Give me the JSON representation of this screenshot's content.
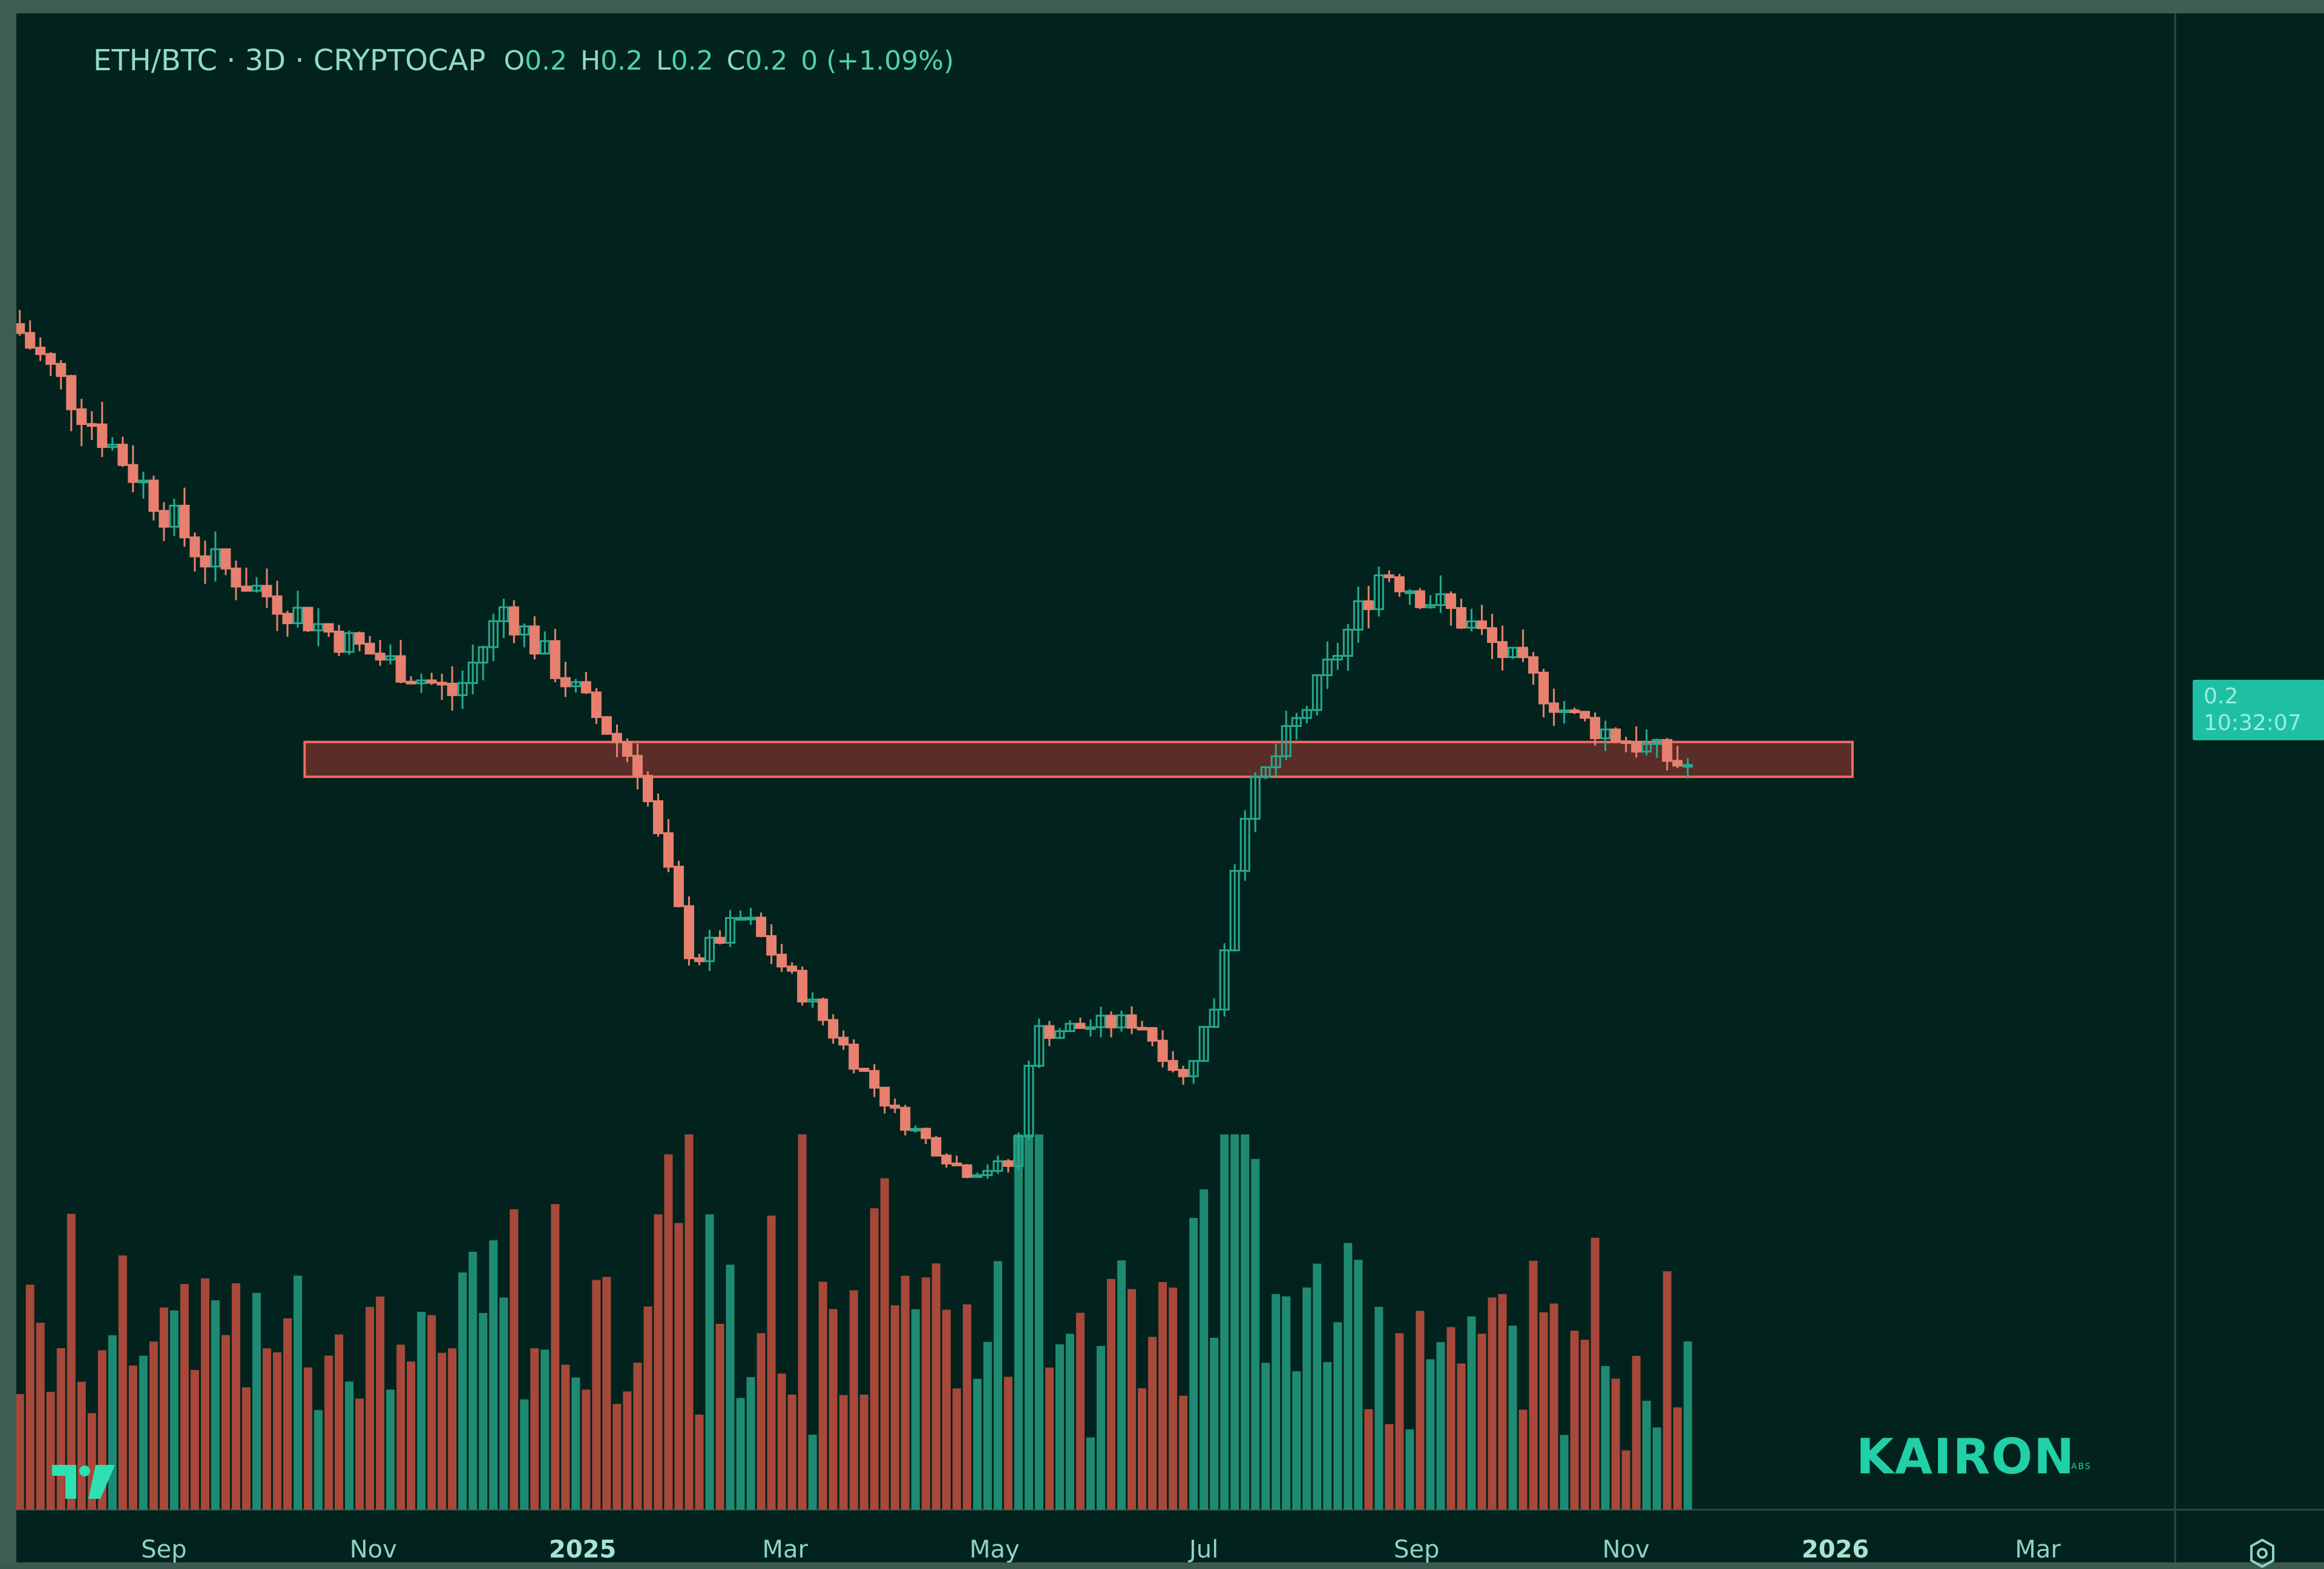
{
  "symbol": {
    "title": "ETH/BTC · 3D · CRYPTOCAP",
    "ohlc": [
      {
        "key": "O",
        "value": "0.2"
      },
      {
        "key": "H",
        "value": "0.2"
      },
      {
        "key": "L",
        "value": "0.2"
      },
      {
        "key": "C",
        "value": "0.2"
      }
    ],
    "change": "0 (+1.09%)"
  },
  "price_tag": {
    "price": "0.2",
    "countdown": "10:32:07"
  },
  "x_axis": [
    "Sep",
    "Nov",
    "2025",
    "Mar",
    "May",
    "Jul",
    "Sep",
    "Nov",
    "2026",
    "Mar"
  ],
  "x_axis_bold": [
    "2025",
    "2026"
  ],
  "brand": {
    "name": "KAIRON",
    "sub": "LABS"
  },
  "colors": {
    "background": "#02231d",
    "up": "#26a98f",
    "down": "#e8806f",
    "volume_up": "#1f8a72",
    "volume_down": "#a8483a",
    "zone_fill": "#6a2f2c",
    "zone_stroke": "#f26a60",
    "accent": "#21d0a6"
  },
  "icons": {
    "settings": "settings-icon",
    "logo": "tradingview-logo-icon"
  },
  "chart_data": {
    "type": "candlestick",
    "interval": "3D",
    "x_range": [
      "2024-07-20",
      "2026-04-10"
    ],
    "price_anchors": [
      {
        "date": "2024-07-22",
        "price": 0.054
      },
      {
        "date": "2024-09-15",
        "price": 0.044
      },
      {
        "date": "2024-10-25",
        "price": 0.0405
      },
      {
        "date": "2024-11-28",
        "price": 0.038
      },
      {
        "date": "2024-12-12",
        "price": 0.0418
      },
      {
        "date": "2025-01-20",
        "price": 0.035
      },
      {
        "date": "2025-02-05",
        "price": 0.0265
      },
      {
        "date": "2025-02-20",
        "price": 0.0285
      },
      {
        "date": "2025-04-05",
        "price": 0.02
      },
      {
        "date": "2025-04-25",
        "price": 0.0175
      },
      {
        "date": "2025-05-10",
        "price": 0.0178
      },
      {
        "date": "2025-05-15",
        "price": 0.0235
      },
      {
        "date": "2025-06-15",
        "price": 0.024
      },
      {
        "date": "2025-06-28",
        "price": 0.0215
      },
      {
        "date": "2025-07-08",
        "price": 0.025
      },
      {
        "date": "2025-07-15",
        "price": 0.033
      },
      {
        "date": "2025-08-05",
        "price": 0.038
      },
      {
        "date": "2025-08-25",
        "price": 0.0435
      },
      {
        "date": "2025-09-20",
        "price": 0.041
      },
      {
        "date": "2025-10-20",
        "price": 0.037
      },
      {
        "date": "2025-11-06",
        "price": 0.036
      },
      {
        "date": "2025-11-20",
        "price": 0.035
      }
    ],
    "support_zone": {
      "from": "2024-10-12",
      "to": "2026-01-06",
      "low": 0.0345,
      "high": 0.036
    },
    "volume_bars": 165
  }
}
